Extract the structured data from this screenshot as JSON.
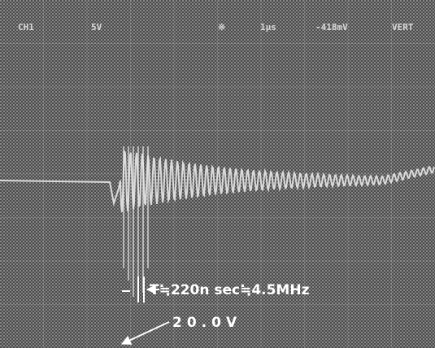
{
  "header": {
    "channel": "CH1",
    "volts_per_div": "5V",
    "trigger": "※",
    "time_per_div": "1μs",
    "trigger_level": "-418mV",
    "mode": "VERT"
  },
  "annotations": {
    "period": "T≒220n sec≒4.5MHz",
    "amplitude": "20.0V"
  }
}
